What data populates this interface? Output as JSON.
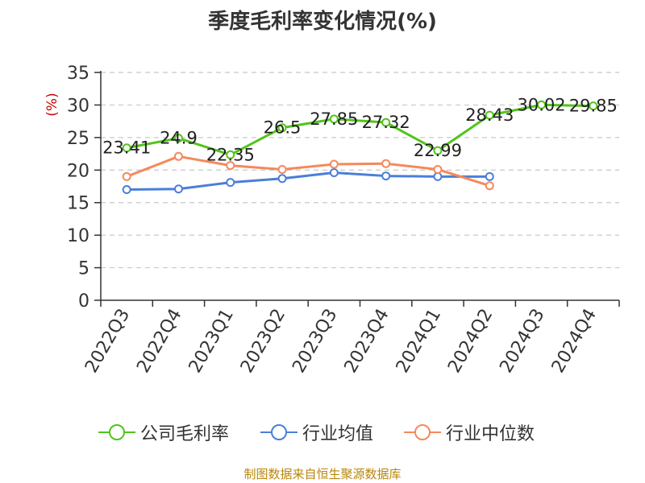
{
  "chart_data": {
    "type": "line",
    "title": "季度毛利率变化情况(%)",
    "ylabel": "(%)",
    "xlabel": "",
    "ylim": [
      0,
      35
    ],
    "yticks": [
      0,
      5,
      10,
      15,
      20,
      25,
      30,
      35
    ],
    "grid": true,
    "legend_position": "bottom",
    "categories": [
      "2022Q3",
      "2022Q4",
      "2023Q1",
      "2023Q2",
      "2023Q3",
      "2023Q4",
      "2024Q1",
      "2024Q2",
      "2024Q3",
      "2024Q4"
    ],
    "series": [
      {
        "name": "公司毛利率",
        "color": "#52c41a",
        "labeled": true,
        "values": [
          23.41,
          24.9,
          22.35,
          26.5,
          27.85,
          27.32,
          22.99,
          28.43,
          30.02,
          29.85
        ]
      },
      {
        "name": "行业均值",
        "color": "#4a7fd8",
        "labeled": false,
        "values": [
          17.0,
          17.1,
          18.1,
          18.7,
          19.6,
          19.1,
          19.0,
          19.0,
          null,
          null
        ]
      },
      {
        "name": "行业中位数",
        "color": "#f5895b",
        "labeled": false,
        "values": [
          19.0,
          22.1,
          20.7,
          20.1,
          20.9,
          21.0,
          20.1,
          17.6,
          null,
          null
        ]
      }
    ],
    "source": "制图数据来自恒生聚源数据库"
  }
}
